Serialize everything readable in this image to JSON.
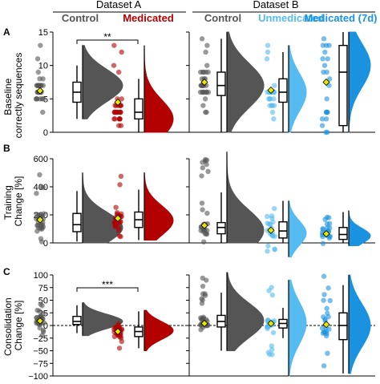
{
  "chart_data": [
    {
      "panel": "A",
      "type": "raincloud",
      "ylabel": "Baseline correctly sequences",
      "yticks": [
        "0",
        "5",
        "10",
        "15"
      ],
      "ylim": [
        0,
        15
      ],
      "annotation": "**",
      "series": [
        {
          "name": "Control",
          "dataset": "A",
          "color": "#555555",
          "n": 30,
          "mean": 6.2,
          "median": 6,
          "q1": 4.5,
          "q3": 7.5,
          "whisker": [
            2,
            10
          ],
          "range": [
            2,
            13
          ],
          "mode": 7
        },
        {
          "name": "Medicated",
          "dataset": "A",
          "color": "#b30000",
          "n": 30,
          "mean": 4.5,
          "median": 3,
          "q1": 2,
          "q3": 5,
          "whisker": [
            0,
            8
          ],
          "range": [
            1,
            13
          ],
          "mode": 2
        },
        {
          "name": "Control",
          "dataset": "B",
          "color": "#555555",
          "n": 30,
          "mean": 7.5,
          "median": 7,
          "q1": 5.5,
          "q3": 9,
          "whisker": [
            0,
            14
          ],
          "range": [
            0,
            15
          ],
          "mode": 7
        },
        {
          "name": "Unmedicated",
          "dataset": "B",
          "color": "#55bbf0",
          "n": 22,
          "mean": 6.3,
          "median": 6,
          "q1": 4.5,
          "q3": 8,
          "whisker": [
            0,
            12
          ],
          "range": [
            2,
            13
          ],
          "mode": 6
        },
        {
          "name": "Medicated (7d)",
          "dataset": "B",
          "color": "#1b92e0",
          "n": 22,
          "mean": 7.5,
          "median": 9,
          "q1": 1,
          "q3": 13,
          "whisker": [
            0,
            15
          ],
          "range": [
            0,
            14
          ],
          "mode": 10
        }
      ]
    },
    {
      "panel": "B",
      "type": "raincloud",
      "ylabel": "Training Change [%]",
      "yticks": [
        "0",
        "200",
        "400",
        "600"
      ],
      "ylim": [
        0,
        600
      ],
      "series": [
        {
          "name": "Control",
          "dataset": "A",
          "color": "#555555",
          "n": 30,
          "mean": 165,
          "median": 130,
          "q1": 80,
          "q3": 210,
          "whisker": [
            10,
            370
          ],
          "range": [
            0,
            500
          ],
          "mode": 110
        },
        {
          "name": "Medicated",
          "dataset": "A",
          "color": "#b30000",
          "n": 30,
          "mean": 175,
          "median": 165,
          "q1": 110,
          "q3": 220,
          "whisker": [
            20,
            380
          ],
          "range": [
            40,
            500
          ],
          "mode": 160
        },
        {
          "name": "Control",
          "dataset": "B",
          "color": "#555555",
          "n": 30,
          "mean": 125,
          "median": 110,
          "q1": 65,
          "q3": 145,
          "whisker": [
            0,
            360
          ],
          "range": [
            0,
            650
          ],
          "mode": 90
        },
        {
          "name": "Unmedicated",
          "dataset": "B",
          "color": "#55bbf0",
          "n": 22,
          "mean": 90,
          "median": 85,
          "q1": 35,
          "q3": 150,
          "whisker": [
            0,
            300
          ],
          "range": [
            -100,
            290
          ],
          "mode": 70
        },
        {
          "name": "Medicated (7d)",
          "dataset": "B",
          "color": "#1b92e0",
          "n": 22,
          "mean": 65,
          "median": 60,
          "q1": 25,
          "q3": 110,
          "whisker": [
            0,
            220
          ],
          "range": [
            -20,
            230
          ],
          "mode": 50
        }
      ]
    },
    {
      "panel": "C",
      "type": "raincloud",
      "ylabel": "Consolidation Change [%]",
      "yticks": [
        "−100",
        "−75",
        "−50",
        "−25",
        "0",
        "25",
        "50",
        "75",
        "100"
      ],
      "ylim": [
        -100,
        100
      ],
      "reference_line": 0,
      "annotation": "***",
      "series": [
        {
          "name": "Control",
          "dataset": "A",
          "color": "#555555",
          "n": 30,
          "mean": 9,
          "median": 8,
          "q1": 2,
          "q3": 18,
          "whisker": [
            -15,
            40
          ],
          "range": [
            -20,
            45
          ],
          "mode": 8
        },
        {
          "name": "Medicated",
          "dataset": "A",
          "color": "#b30000",
          "n": 30,
          "mean": -12,
          "median": -12,
          "q1": -22,
          "q3": -3,
          "whisker": [
            -45,
            28
          ],
          "range": [
            -50,
            30
          ],
          "mode": -10
        },
        {
          "name": "Control",
          "dataset": "B",
          "color": "#555555",
          "n": 30,
          "mean": 4,
          "median": 8,
          "q1": -3,
          "q3": 20,
          "whisker": [
            -50,
            65
          ],
          "range": [
            -45,
            105
          ],
          "mode": 10
        },
        {
          "name": "Unmedicated",
          "dataset": "B",
          "color": "#55bbf0",
          "n": 22,
          "mean": 4,
          "median": 4,
          "q1": -5,
          "q3": 12,
          "whisker": [
            -25,
            35
          ],
          "range": [
            -100,
            90
          ],
          "mode": 5
        },
        {
          "name": "Medicated (7d)",
          "dataset": "B",
          "color": "#1b92e0",
          "n": 22,
          "mean": 2,
          "median": 0,
          "q1": -28,
          "q3": 25,
          "whisker": [
            -95,
            80
          ],
          "range": [
            -95,
            100
          ],
          "mode": 0
        }
      ]
    }
  ],
  "figure": {
    "panel_letters": [
      "A",
      "B",
      "C"
    ],
    "dataset_a_title": "Dataset A",
    "dataset_b_title": "Dataset B",
    "headers": {
      "a_control": "Control",
      "a_medicated": "Medicated",
      "b_control": "Control",
      "b_unmedicated": "Unmedicated",
      "b_medicated7d": "Medicated (7d)"
    },
    "header_colors": {
      "a_control": "#555555",
      "a_medicated": "#b30000",
      "b_control": "#555555",
      "b_unmedicated": "#55bbf0",
      "b_medicated7d": "#1b92e0"
    },
    "ylabel_lines": {
      "A": [
        "Baseline",
        "correctly sequences"
      ],
      "B": [
        "Training",
        "Change [%]"
      ],
      "C": [
        "Consolidation",
        "Change [%]"
      ]
    },
    "mean_marker_color": "#e6e600"
  }
}
